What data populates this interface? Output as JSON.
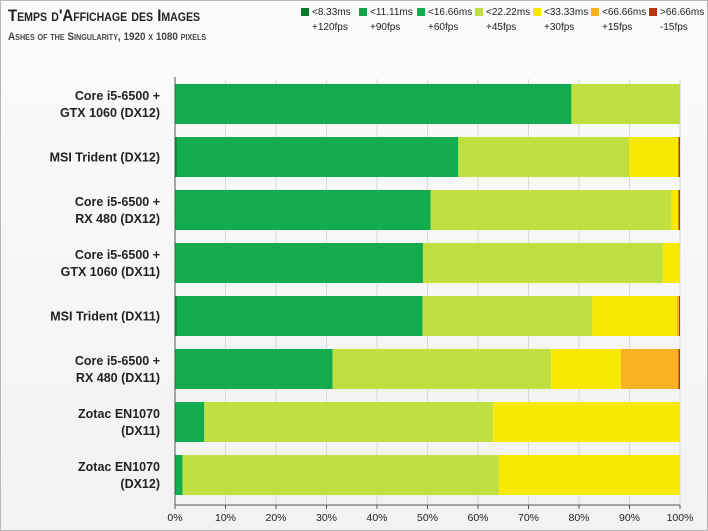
{
  "chart_data": {
    "type": "bar",
    "orientation": "horizontal",
    "stacked": true,
    "title": "Temps d'Affichage des Images",
    "subtitle": "Ashes of the Singularity, 1920 x 1080 pixels",
    "categories": [
      [
        "Core i5-6500 +",
        "GTX 1060 (DX12)"
      ],
      [
        "MSI Trident (DX12)"
      ],
      [
        "Core i5-6500 +",
        "RX 480 (DX12)"
      ],
      [
        "Core i5-6500 +",
        "GTX 1060 (DX11)"
      ],
      [
        "MSI Trident (DX11)"
      ],
      [
        "Core i5-6500 +",
        "RX 480 (DX11)"
      ],
      [
        "Zotac EN1070",
        "(DX11)"
      ],
      [
        "Zotac EN1070",
        "(DX12)"
      ]
    ],
    "series": [
      {
        "name": "<8.33ms",
        "fps": "+120fps",
        "color": "#0a7a2f",
        "values": [
          0,
          0.3,
          0,
          0,
          0.3,
          0,
          0,
          0
        ]
      },
      {
        "name": "<11.11ms",
        "fps": "+90fps",
        "color": "#0da243",
        "values": [
          0,
          0.2,
          0,
          0,
          0.2,
          0,
          0,
          0
        ]
      },
      {
        "name": "<16.66ms",
        "fps": "+60fps",
        "color": "#13ac4d",
        "values": [
          78.5,
          55.6,
          50.6,
          49.1,
          48.5,
          31.2,
          5.8,
          1.5
        ]
      },
      {
        "name": "<22.22ms",
        "fps": "+45fps",
        "color": "#bfe040",
        "values": [
          21.5,
          33.8,
          47.7,
          47.5,
          33.6,
          43.3,
          57.2,
          62.6
        ]
      },
      {
        "name": "<33.33ms",
        "fps": "+30fps",
        "color": "#f6ea04",
        "values": [
          0,
          9.8,
          1.4,
          3.4,
          16.8,
          13.8,
          37.0,
          35.9
        ]
      },
      {
        "name": "<66.66ms",
        "fps": "+15fps",
        "color": "#fbb124",
        "values": [
          0,
          0,
          0,
          0,
          0.4,
          11.4,
          0,
          0
        ]
      },
      {
        "name": ">66.66ms",
        "fps": "-15fps",
        "color": "#b13a12",
        "values": [
          0,
          0.3,
          0.3,
          0,
          0.2,
          0.3,
          0,
          0
        ]
      }
    ],
    "x_ticks": [
      "0%",
      "10%",
      "20%",
      "30%",
      "40%",
      "50%",
      "60%",
      "70%",
      "80%",
      "90%",
      "100%"
    ],
    "xlim": [
      0,
      100
    ],
    "grid": true,
    "legend_position": "top-right"
  }
}
